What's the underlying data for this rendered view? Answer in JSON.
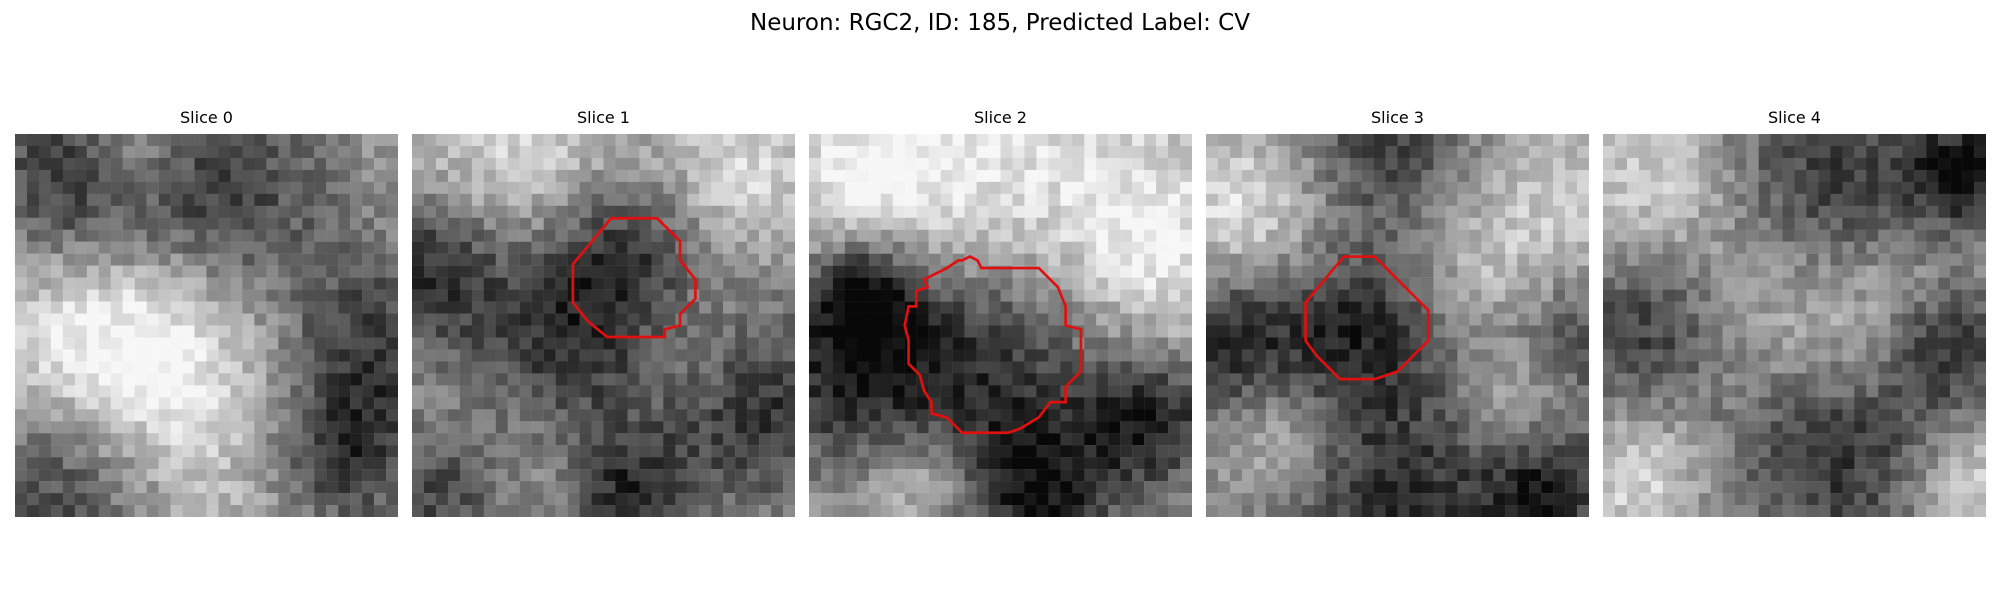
{
  "figure": {
    "title": "Neuron: RGC2, ID: 185, Predicted Label: CV"
  },
  "panels": [
    {
      "title": "Slice 0",
      "seed": 11,
      "has_roi": false,
      "dark_blobs": [
        [
          0.15,
          0.12,
          0.18
        ],
        [
          0.55,
          0.18,
          0.22
        ],
        [
          0.92,
          0.55,
          0.18
        ],
        [
          0.12,
          0.92,
          0.2
        ],
        [
          0.85,
          0.85,
          0.15
        ]
      ],
      "bright_blobs": [
        [
          0.45,
          0.62,
          0.35
        ],
        [
          0.25,
          0.55,
          0.2
        ],
        [
          0.3,
          0.05,
          0.1
        ]
      ],
      "roi": []
    },
    {
      "title": "Slice 1",
      "seed": 23,
      "has_roi": true,
      "dark_blobs": [
        [
          0.55,
          0.32,
          0.18
        ],
        [
          0.4,
          0.62,
          0.2
        ],
        [
          0.05,
          0.35,
          0.15
        ],
        [
          0.9,
          0.7,
          0.2
        ],
        [
          0.1,
          0.95,
          0.15
        ],
        [
          0.55,
          0.95,
          0.12
        ]
      ],
      "bright_blobs": [
        [
          0.3,
          0.1,
          0.2
        ],
        [
          0.85,
          0.12,
          0.15
        ],
        [
          0.7,
          0.55,
          0.15
        ],
        [
          0.3,
          0.85,
          0.2
        ]
      ],
      "roi": [
        [
          0.52,
          0.22
        ],
        [
          0.64,
          0.22
        ],
        [
          0.7,
          0.28
        ],
        [
          0.7,
          0.33
        ],
        [
          0.74,
          0.38
        ],
        [
          0.74,
          0.43
        ],
        [
          0.7,
          0.47
        ],
        [
          0.7,
          0.5
        ],
        [
          0.66,
          0.51
        ],
        [
          0.66,
          0.53
        ],
        [
          0.59,
          0.53
        ],
        [
          0.51,
          0.53
        ],
        [
          0.46,
          0.49
        ],
        [
          0.42,
          0.44
        ],
        [
          0.42,
          0.34
        ],
        [
          0.47,
          0.28
        ]
      ]
    },
    {
      "title": "Slice 2",
      "seed": 37,
      "has_roi": true,
      "dark_blobs": [
        [
          0.48,
          0.58,
          0.25
        ],
        [
          0.1,
          0.6,
          0.2
        ],
        [
          0.15,
          0.4,
          0.1
        ],
        [
          0.6,
          0.95,
          0.15
        ],
        [
          0.9,
          0.75,
          0.12
        ]
      ],
      "bright_blobs": [
        [
          0.5,
          0.15,
          0.3
        ],
        [
          0.15,
          0.15,
          0.2
        ],
        [
          0.9,
          0.3,
          0.18
        ],
        [
          0.3,
          0.9,
          0.12
        ]
      ],
      "roi": [
        [
          0.39,
          0.33
        ],
        [
          0.4,
          0.33
        ],
        [
          0.42,
          0.32
        ],
        [
          0.44,
          0.33
        ],
        [
          0.45,
          0.35
        ],
        [
          0.53,
          0.35
        ],
        [
          0.6,
          0.35
        ],
        [
          0.65,
          0.4
        ],
        [
          0.67,
          0.45
        ],
        [
          0.67,
          0.5
        ],
        [
          0.71,
          0.51
        ],
        [
          0.71,
          0.62
        ],
        [
          0.67,
          0.66
        ],
        [
          0.67,
          0.7
        ],
        [
          0.63,
          0.7
        ],
        [
          0.6,
          0.74
        ],
        [
          0.55,
          0.77
        ],
        [
          0.52,
          0.78
        ],
        [
          0.4,
          0.78
        ],
        [
          0.36,
          0.74
        ],
        [
          0.32,
          0.73
        ],
        [
          0.32,
          0.7
        ],
        [
          0.3,
          0.67
        ],
        [
          0.29,
          0.63
        ],
        [
          0.26,
          0.6
        ],
        [
          0.26,
          0.54
        ],
        [
          0.25,
          0.5
        ],
        [
          0.26,
          0.45
        ],
        [
          0.28,
          0.45
        ],
        [
          0.28,
          0.41
        ],
        [
          0.31,
          0.4
        ],
        [
          0.3,
          0.38
        ],
        [
          0.36,
          0.35
        ]
      ]
    },
    {
      "title": "Slice 3",
      "seed": 53,
      "has_roi": true,
      "dark_blobs": [
        [
          0.42,
          0.5,
          0.16
        ],
        [
          0.05,
          0.55,
          0.15
        ],
        [
          0.5,
          0.05,
          0.18
        ],
        [
          0.5,
          0.95,
          0.25
        ],
        [
          0.95,
          0.55,
          0.15
        ],
        [
          0.9,
          0.92,
          0.12
        ]
      ],
      "bright_blobs": [
        [
          0.1,
          0.2,
          0.15
        ],
        [
          0.75,
          0.3,
          0.25
        ],
        [
          0.2,
          0.78,
          0.12
        ],
        [
          0.85,
          0.7,
          0.12
        ]
      ],
      "roi": [
        [
          0.36,
          0.32
        ],
        [
          0.44,
          0.32
        ],
        [
          0.5,
          0.38
        ],
        [
          0.58,
          0.46
        ],
        [
          0.58,
          0.54
        ],
        [
          0.5,
          0.62
        ],
        [
          0.44,
          0.64
        ],
        [
          0.35,
          0.64
        ],
        [
          0.29,
          0.58
        ],
        [
          0.26,
          0.54
        ],
        [
          0.26,
          0.44
        ],
        [
          0.31,
          0.38
        ]
      ]
    },
    {
      "title": "Slice 4",
      "seed": 71,
      "has_roi": false,
      "dark_blobs": [
        [
          0.6,
          0.15,
          0.25
        ],
        [
          0.12,
          0.5,
          0.18
        ],
        [
          0.6,
          0.82,
          0.22
        ],
        [
          0.9,
          0.55,
          0.12
        ],
        [
          0.95,
          0.1,
          0.1
        ]
      ],
      "bright_blobs": [
        [
          0.15,
          0.15,
          0.18
        ],
        [
          0.4,
          0.5,
          0.2
        ],
        [
          0.75,
          0.45,
          0.18
        ],
        [
          0.1,
          0.88,
          0.12
        ],
        [
          0.95,
          0.92,
          0.1
        ]
      ],
      "roi": []
    }
  ],
  "roi_color": "#e01010"
}
